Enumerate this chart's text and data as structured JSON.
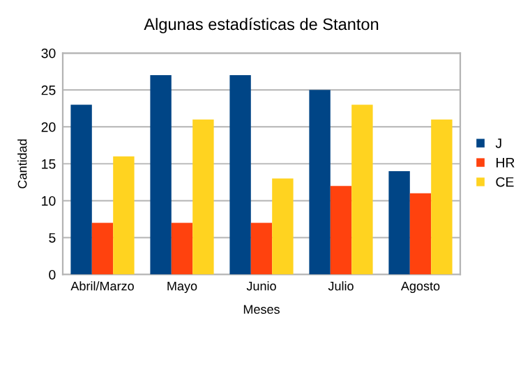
{
  "chart_data": {
    "type": "bar",
    "title": "Algunas estadísticas de Stanton",
    "xlabel": "Meses",
    "ylabel": "Cantidad",
    "categories": [
      "Abril/Marzo",
      "Mayo",
      "Junio",
      "Julio",
      "Agosto"
    ],
    "series": [
      {
        "name": "J",
        "color": "#004586",
        "values": [
          23,
          27,
          27,
          25,
          14
        ]
      },
      {
        "name": "HR",
        "color": "#ff420e",
        "values": [
          7,
          7,
          7,
          12,
          11
        ]
      },
      {
        "name": "CE",
        "color": "#ffd320",
        "values": [
          16,
          21,
          13,
          23,
          21
        ]
      }
    ],
    "ylim": [
      0,
      30
    ],
    "yticks": [
      0,
      5,
      10,
      15,
      20,
      25,
      30
    ],
    "grid": "y",
    "legend": "right"
  }
}
